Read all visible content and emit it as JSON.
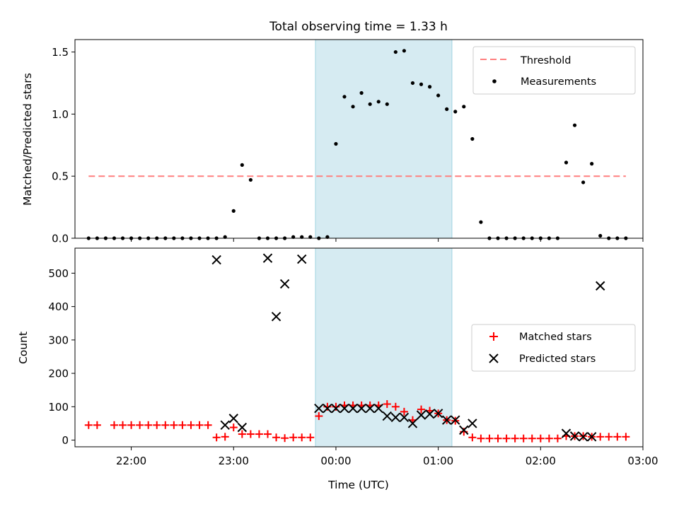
{
  "chart_data": [
    {
      "type": "scatter",
      "title": "Total observing time = 1.33 h",
      "ylabel": "Matched/Predicted stars",
      "xlim": [
        "21:27",
        "03:00"
      ],
      "ylim": [
        0,
        1.6
      ],
      "yticks": [
        "0.0",
        "0.5",
        "1.0",
        "1.5"
      ],
      "shaded_region": [
        "23:48",
        "01:08"
      ],
      "shaded_color": "#add8e6",
      "legend_position": "upper right",
      "series": [
        {
          "name": "Threshold",
          "style": "dashed",
          "color": "#ff7f7f",
          "x": [
            "21:35",
            "02:50"
          ],
          "y": [
            0.5,
            0.5
          ]
        },
        {
          "name": "Measurements",
          "style": "points",
          "color": "#000000",
          "x": [
            "21:35",
            "21:40",
            "21:45",
            "21:50",
            "21:55",
            "22:00",
            "22:05",
            "22:10",
            "22:15",
            "22:20",
            "22:25",
            "22:30",
            "22:35",
            "22:40",
            "22:45",
            "22:50",
            "22:55",
            "23:00",
            "23:05",
            "23:10",
            "23:15",
            "23:20",
            "23:25",
            "23:30",
            "23:35",
            "23:40",
            "23:45",
            "23:50",
            "23:55",
            "00:00",
            "00:05",
            "00:10",
            "00:15",
            "00:20",
            "00:25",
            "00:30",
            "00:35",
            "00:40",
            "00:45",
            "00:50",
            "00:55",
            "01:00",
            "01:05",
            "01:10",
            "01:15",
            "01:20",
            "01:25",
            "01:30",
            "01:35",
            "01:40",
            "01:45",
            "01:50",
            "01:55",
            "02:00",
            "02:05",
            "02:10",
            "02:15",
            "02:20",
            "02:25",
            "02:30",
            "02:35",
            "02:40",
            "02:45",
            "02:50"
          ],
          "y": [
            0.0,
            0.0,
            0.0,
            0.0,
            0.0,
            0.0,
            0.0,
            0.0,
            0.0,
            0.0,
            0.0,
            0.0,
            0.0,
            0.0,
            0.0,
            0.0,
            0.01,
            0.22,
            0.59,
            0.47,
            0.0,
            0.0,
            0.0,
            0.0,
            0.01,
            0.01,
            0.01,
            0.0,
            0.01,
            0.76,
            1.14,
            1.06,
            1.17,
            1.08,
            1.1,
            1.08,
            1.5,
            1.51,
            1.25,
            1.24,
            1.22,
            1.15,
            1.04,
            1.02,
            1.06,
            0.8,
            0.13,
            0.0,
            0.0,
            0.0,
            0.0,
            0.0,
            0.0,
            0.0,
            0.0,
            0.0,
            0.61,
            0.91,
            0.45,
            0.6,
            0.02,
            0.0,
            0.0,
            0.0
          ]
        }
      ]
    },
    {
      "type": "scatter",
      "xlabel": "Time (UTC)",
      "ylabel": "Count",
      "xlim": [
        "21:27",
        "03:00"
      ],
      "ylim": [
        -20,
        575
      ],
      "yticks": [
        "0",
        "100",
        "200",
        "300",
        "400",
        "500"
      ],
      "xticks": [
        "22:00",
        "23:00",
        "00:00",
        "01:00",
        "02:00",
        "03:00"
      ],
      "shaded_region": [
        "23:48",
        "01:08"
      ],
      "legend_position": "center right",
      "series": [
        {
          "name": "Matched stars",
          "marker": "+",
          "color": "#ff0000",
          "x": [
            "21:35",
            "21:40",
            "21:50",
            "21:55",
            "22:00",
            "22:05",
            "22:10",
            "22:15",
            "22:20",
            "22:25",
            "22:30",
            "22:35",
            "22:40",
            "22:45",
            "22:50",
            "22:55",
            "23:00",
            "23:05",
            "23:10",
            "23:15",
            "23:20",
            "23:25",
            "23:30",
            "23:35",
            "23:40",
            "23:45",
            "23:50",
            "23:55",
            "00:00",
            "00:05",
            "00:10",
            "00:15",
            "00:20",
            "00:25",
            "00:30",
            "00:35",
            "00:40",
            "00:45",
            "00:50",
            "00:55",
            "01:00",
            "01:05",
            "01:10",
            "01:15",
            "01:20",
            "01:25",
            "01:30",
            "01:35",
            "01:40",
            "01:45",
            "01:50",
            "01:55",
            "02:00",
            "02:05",
            "02:10",
            "02:15",
            "02:20",
            "02:25",
            "02:30",
            "02:35",
            "02:40",
            "02:45",
            "02:50"
          ],
          "y": [
            45,
            45,
            45,
            45,
            45,
            45,
            45,
            45,
            45,
            45,
            45,
            45,
            45,
            45,
            8,
            10,
            38,
            18,
            18,
            18,
            18,
            8,
            6,
            8,
            8,
            8,
            72,
            100,
            100,
            104,
            104,
            104,
            104,
            104,
            108,
            100,
            85,
            60,
            92,
            88,
            80,
            60,
            58,
            25,
            8,
            5,
            5,
            5,
            5,
            5,
            5,
            5,
            5,
            5,
            5,
            12,
            12,
            12,
            10,
            10,
            10,
            10,
            10
          ]
        },
        {
          "name": "Predicted stars",
          "marker": "x",
          "color": "#000000",
          "x": [
            "22:50",
            "22:55",
            "23:00",
            "23:05",
            "23:20",
            "23:25",
            "23:30",
            "23:40",
            "23:50",
            "23:55",
            "00:00",
            "00:05",
            "00:10",
            "00:15",
            "00:20",
            "00:25",
            "00:30",
            "00:35",
            "00:40",
            "00:45",
            "00:50",
            "00:55",
            "01:00",
            "01:05",
            "01:10",
            "01:15",
            "01:20",
            "02:15",
            "02:20",
            "02:25",
            "02:30",
            "02:35"
          ],
          "y": [
            540,
            45,
            65,
            38,
            545,
            370,
            468,
            542,
            95,
            95,
            95,
            95,
            95,
            95,
            95,
            95,
            72,
            68,
            68,
            50,
            75,
            78,
            80,
            60,
            60,
            30,
            50,
            20,
            12,
            10,
            10,
            462
          ]
        }
      ]
    }
  ]
}
